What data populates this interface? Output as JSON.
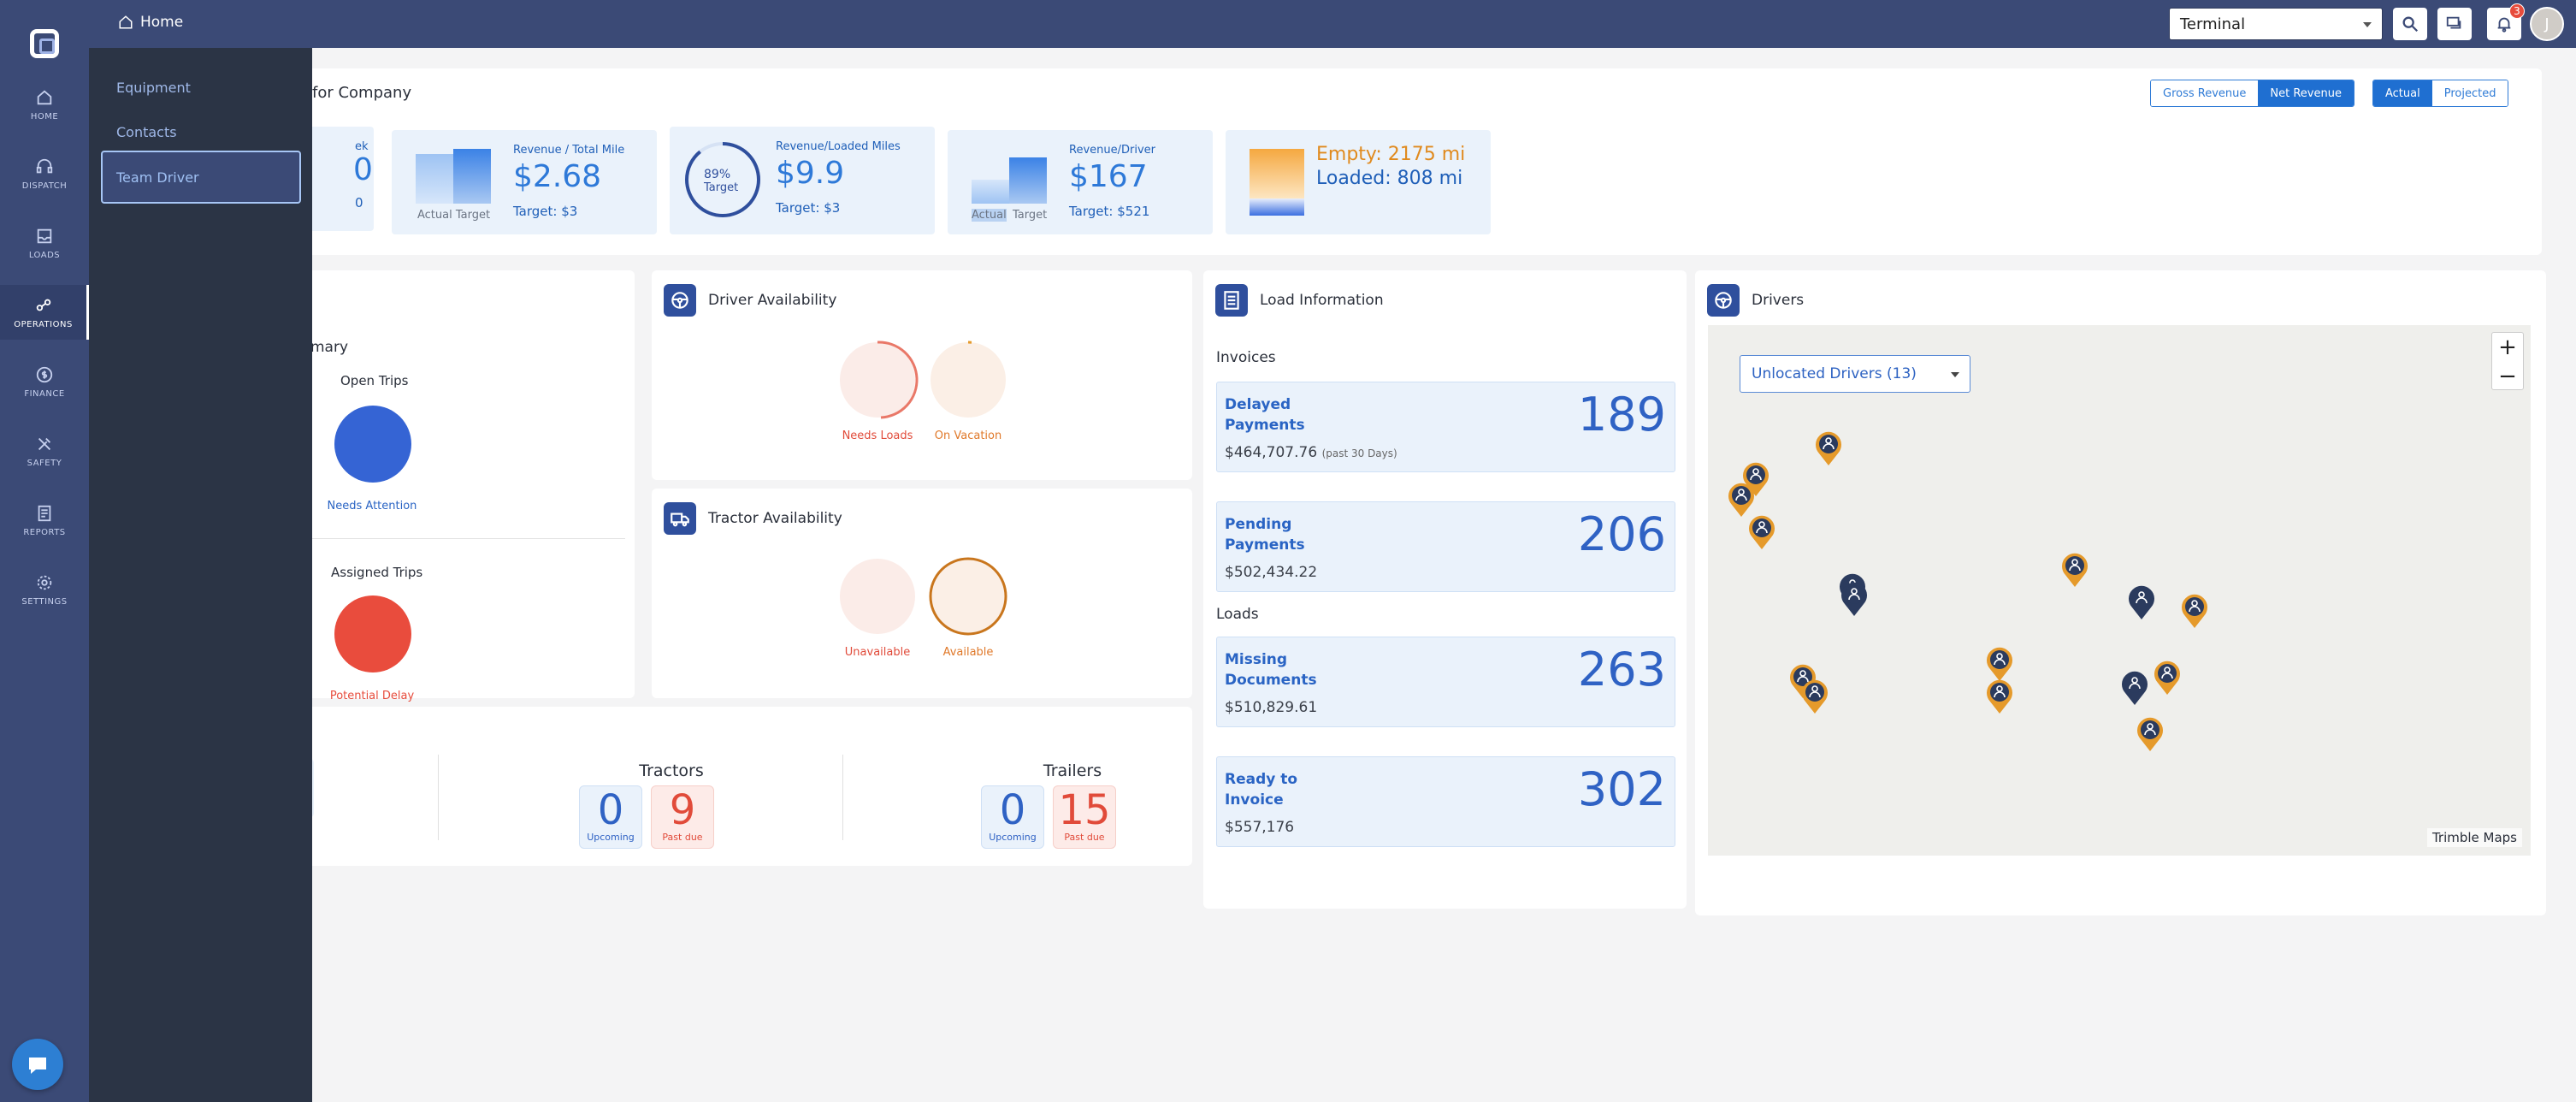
{
  "header": {
    "breadcrumb": "Home",
    "terminal_value": "Terminal",
    "notification_count": "3",
    "avatar_initial": "J"
  },
  "rail": {
    "items": [
      {
        "label": "HOME",
        "icon": "home-icon"
      },
      {
        "label": "DISPATCH",
        "icon": "headset-icon"
      },
      {
        "label": "LOADS",
        "icon": "loads-icon"
      },
      {
        "label": "OPERATIONS",
        "icon": "operations-icon"
      },
      {
        "label": "FINANCE",
        "icon": "dollar-icon"
      },
      {
        "label": "SAFETY",
        "icon": "tools-icon"
      },
      {
        "label": "REPORTS",
        "icon": "report-icon"
      },
      {
        "label": "SETTINGS",
        "icon": "gear-icon"
      }
    ],
    "active": "OPERATIONS"
  },
  "flyout": {
    "items": [
      "Equipment",
      "Contacts",
      "Team Driver"
    ],
    "active": "Team Driver"
  },
  "kpis": {
    "title": "for Company",
    "revenue_toggle": [
      "Gross Revenue",
      "Net Revenue"
    ],
    "revenue_toggle_active": "Net Revenue",
    "mode_toggle": [
      "Actual",
      "Projected"
    ],
    "mode_toggle_active": "Actual",
    "partial_card": {
      "label": "ek",
      "value": "0",
      "sub": "0"
    },
    "per_mile": {
      "label": "Revenue / Total Mile",
      "value": "$2.68",
      "target": "Target: $3",
      "legend": "Actual Target"
    },
    "loaded_miles": {
      "label": "Revenue/Loaded Miles",
      "value": "$9.9",
      "target": "Target: $3",
      "gauge_pct": "89%",
      "gauge_label": "Target"
    },
    "per_driver": {
      "label": "Revenue/Driver",
      "value": "$167",
      "target": "Target: $521",
      "legend_actual": "Actual",
      "legend_target": "Target"
    },
    "miles": {
      "empty": "Empty: 2175 mi",
      "loaded": "Loaded: 808 mi"
    }
  },
  "trip_summary": {
    "title": "mary",
    "open_trips": {
      "title": "Open Trips",
      "caption": "Needs Attention"
    },
    "assigned_trips": {
      "title": "Assigned Trips",
      "caption": "Potential Delay"
    }
  },
  "driver_availability": {
    "title": "Driver Availability",
    "captions": [
      "Needs Loads",
      "On Vacation"
    ]
  },
  "tractor_availability": {
    "title": "Tractor Availability",
    "captions": [
      "Unavailable",
      "Available"
    ]
  },
  "equipment": {
    "tractors": {
      "title": "Tractors",
      "upcoming": "0",
      "upcoming_label": "Upcoming",
      "past_due": "9",
      "past_due_label": "Past due"
    },
    "trailers": {
      "title": "Trailers",
      "upcoming": "0",
      "upcoming_label": "Upcoming",
      "past_due": "15",
      "past_due_label": "Past due"
    }
  },
  "load_info": {
    "title": "Load Information",
    "invoices_label": "Invoices",
    "loads_label": "Loads",
    "rows": [
      {
        "label": "Delayed Payments",
        "amount": "$464,707.76",
        "note": "(past 30 Days)",
        "count": "189"
      },
      {
        "label": "Pending Payments",
        "amount": "$502,434.22",
        "note": "",
        "count": "206"
      },
      {
        "label": "Missing Documents",
        "amount": "$510,829.61",
        "note": "",
        "count": "263"
      },
      {
        "label": "Ready to Invoice",
        "amount": "$557,176",
        "note": "",
        "count": "302"
      }
    ]
  },
  "drivers_map": {
    "title": "Drivers",
    "filter_value": "Unlocated Drivers (13)",
    "zoom_in": "+",
    "zoom_out": "−",
    "brand": "Trimble Maps"
  },
  "colors": {
    "brand_nav": "#3b4a76",
    "flyout": "#2b3445",
    "accent": "#2e79d8",
    "danger": "#e74c3c",
    "warning": "#e59a2b"
  }
}
